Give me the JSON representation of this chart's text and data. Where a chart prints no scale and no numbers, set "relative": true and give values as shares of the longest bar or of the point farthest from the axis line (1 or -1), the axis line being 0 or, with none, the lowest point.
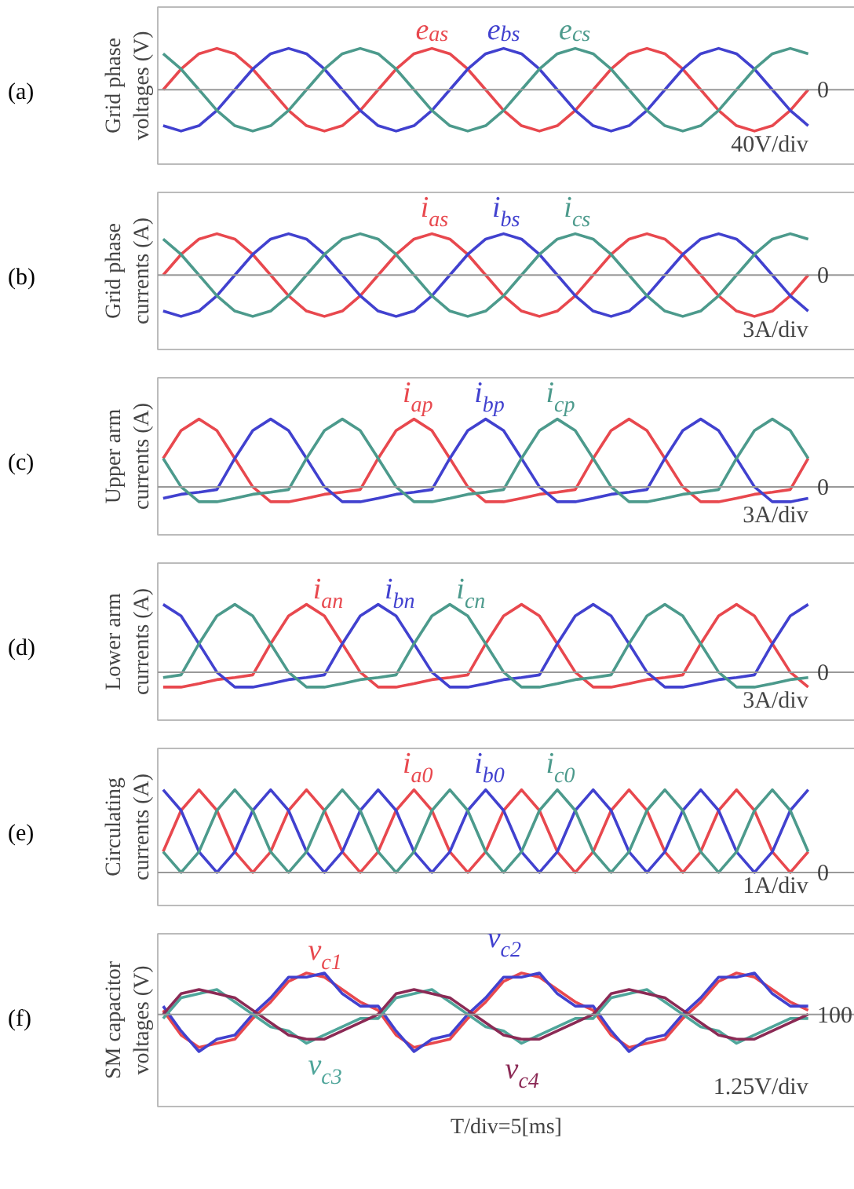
{
  "chart_data": [
    {
      "type": "line",
      "title": "(a)",
      "ylabel": "Grid phase\nvoltages (V)",
      "relative": true,
      "annotations": [
        "40V/div"
      ],
      "ref_lines": [
        {
          "axis": "y",
          "value": 0,
          "label": "0"
        }
      ],
      "categories": [
        null,
        null,
        null,
        null,
        null,
        null,
        null,
        null,
        null,
        null,
        null,
        null,
        null,
        null,
        null,
        null,
        null,
        null,
        null,
        null,
        null,
        null,
        null,
        null,
        null,
        null,
        null,
        null,
        null,
        null,
        null,
        null,
        null,
        null,
        null,
        null,
        null
      ],
      "series": [
        {
          "name": "e$_{as}$",
          "color": "#e8484e",
          "values": [
            0,
            0.5,
            0.87,
            1,
            0.87,
            0.5,
            0,
            -0.5,
            -0.87,
            -1,
            -0.87,
            -0.5,
            0,
            0.5,
            0.87,
            1,
            0.87,
            0.5,
            0,
            -0.5,
            -0.87,
            -1,
            -0.87,
            -0.5,
            0,
            0.5,
            0.87,
            1,
            0.87,
            0.5,
            0,
            -0.5,
            -0.87,
            -1,
            -0.87,
            -0.5,
            0
          ]
        },
        {
          "name": "e$_{bs}$",
          "color": "#4141cf",
          "values": [
            -0.87,
            -1,
            -0.87,
            -0.5,
            0,
            0.5,
            0.87,
            1,
            0.87,
            0.5,
            0,
            -0.5,
            -0.87,
            -1,
            -0.87,
            -0.5,
            0,
            0.5,
            0.87,
            1,
            0.87,
            0.5,
            0,
            -0.5,
            -0.87,
            -1,
            -0.87,
            -0.5,
            0,
            0.5,
            0.87,
            1,
            0.87,
            0.5,
            0,
            -0.5,
            -0.87
          ]
        },
        {
          "name": "e$_{cs}$",
          "color": "#4c9a8c",
          "values": [
            0.87,
            0.5,
            0,
            -0.5,
            -0.87,
            -1,
            -0.87,
            -0.5,
            0,
            0.5,
            0.87,
            1,
            0.87,
            0.5,
            0,
            -0.5,
            -0.87,
            -1,
            -0.87,
            -0.5,
            0,
            0.5,
            0.87,
            1,
            0.87,
            0.5,
            0,
            -0.5,
            -0.87,
            -1,
            -0.87,
            -0.5,
            0,
            0.5,
            0.87,
            1,
            0.87
          ]
        }
      ]
    },
    {
      "type": "line",
      "title": "(b)",
      "ylabel": "Grid phase\ncurrents (A)",
      "relative": true,
      "annotations": [
        "3A/div"
      ],
      "ref_lines": [
        {
          "axis": "y",
          "value": 0,
          "label": "0"
        }
      ],
      "categories": [
        null,
        null,
        null,
        null,
        null,
        null,
        null,
        null,
        null,
        null,
        null,
        null,
        null,
        null,
        null,
        null,
        null,
        null,
        null,
        null,
        null,
        null,
        null,
        null,
        null,
        null,
        null,
        null,
        null,
        null,
        null,
        null,
        null,
        null,
        null,
        null,
        null
      ],
      "series": [
        {
          "name": "i$_{as}$",
          "color": "#e8484e",
          "values": [
            0,
            0.5,
            0.87,
            1,
            0.87,
            0.5,
            0,
            -0.5,
            -0.87,
            -1,
            -0.87,
            -0.5,
            0,
            0.5,
            0.87,
            1,
            0.87,
            0.5,
            0,
            -0.5,
            -0.87,
            -1,
            -0.87,
            -0.5,
            0,
            0.5,
            0.87,
            1,
            0.87,
            0.5,
            0,
            -0.5,
            -0.87,
            -1,
            -0.87,
            -0.5,
            0
          ]
        },
        {
          "name": "i$_{bs}$",
          "color": "#4141cf",
          "values": [
            -0.87,
            -1,
            -0.87,
            -0.5,
            0,
            0.5,
            0.87,
            1,
            0.87,
            0.5,
            0,
            -0.5,
            -0.87,
            -1,
            -0.87,
            -0.5,
            0,
            0.5,
            0.87,
            1,
            0.87,
            0.5,
            0,
            -0.5,
            -0.87,
            -1,
            -0.87,
            -0.5,
            0,
            0.5,
            0.87,
            1,
            0.87,
            0.5,
            0,
            -0.5,
            -0.87
          ]
        },
        {
          "name": "i$_{cs}$",
          "color": "#4c9a8c",
          "values": [
            0.87,
            0.5,
            0,
            -0.5,
            -0.87,
            -1,
            -0.87,
            -0.5,
            0,
            0.5,
            0.87,
            1,
            0.87,
            0.5,
            0,
            -0.5,
            -0.87,
            -1,
            -0.87,
            -0.5,
            0,
            0.5,
            0.87,
            1,
            0.87,
            0.5,
            0,
            -0.5,
            -0.87,
            -1,
            -0.87,
            -0.5,
            0,
            0.5,
            0.87,
            1,
            0.87
          ]
        }
      ]
    },
    {
      "type": "line",
      "title": "(c)",
      "ylabel": "Upper arm\ncurrents (A)",
      "relative": true,
      "annotations": [
        "3A/div"
      ],
      "ref_lines": [
        {
          "axis": "y",
          "value": 0,
          "label": "0"
        }
      ],
      "categories": [
        null,
        null,
        null,
        null,
        null,
        null,
        null,
        null,
        null,
        null,
        null,
        null,
        null,
        null,
        null,
        null,
        null,
        null,
        null,
        null,
        null,
        null,
        null,
        null,
        null,
        null,
        null,
        null,
        null,
        null,
        null,
        null,
        null,
        null,
        null,
        null,
        null
      ],
      "series": [
        {
          "name": "i$_{ap}$",
          "color": "#e8484e",
          "values": [
            0.42,
            0.83,
            1,
            0.83,
            0.42,
            0,
            -0.22,
            -0.22,
            -0.17,
            -0.11,
            -0.08,
            -0.04,
            0.42,
            0.83,
            1,
            0.83,
            0.42,
            0,
            -0.22,
            -0.22,
            -0.17,
            -0.11,
            -0.08,
            -0.04,
            0.42,
            0.83,
            1,
            0.83,
            0.42,
            0,
            -0.22,
            -0.22,
            -0.17,
            -0.11,
            -0.08,
            -0.04,
            0.42
          ]
        },
        {
          "name": "i$_{bp}$",
          "color": "#4141cf",
          "values": [
            -0.17,
            -0.11,
            -0.08,
            -0.04,
            0.42,
            0.83,
            1,
            0.83,
            0.42,
            0,
            -0.22,
            -0.22,
            -0.17,
            -0.11,
            -0.08,
            -0.04,
            0.42,
            0.83,
            1,
            0.83,
            0.42,
            0,
            -0.22,
            -0.22,
            -0.17,
            -0.11,
            -0.08,
            -0.04,
            0.42,
            0.83,
            1,
            0.83,
            0.42,
            0,
            -0.22,
            -0.22,
            -0.17
          ]
        },
        {
          "name": "i$_{cp}$",
          "color": "#4c9a8c",
          "values": [
            0.42,
            0,
            -0.22,
            -0.22,
            -0.17,
            -0.11,
            -0.08,
            -0.04,
            0.42,
            0.83,
            1,
            0.83,
            0.42,
            0,
            -0.22,
            -0.22,
            -0.17,
            -0.11,
            -0.08,
            -0.04,
            0.42,
            0.83,
            1,
            0.83,
            0.42,
            0,
            -0.22,
            -0.22,
            -0.17,
            -0.11,
            -0.08,
            -0.04,
            0.42,
            0.83,
            1,
            0.83,
            0.42
          ]
        }
      ]
    },
    {
      "type": "line",
      "title": "(d)",
      "ylabel": "Lower arm\ncurrents (A)",
      "relative": true,
      "annotations": [
        "3A/div"
      ],
      "ref_lines": [
        {
          "axis": "y",
          "value": 0,
          "label": "0"
        }
      ],
      "categories": [
        null,
        null,
        null,
        null,
        null,
        null,
        null,
        null,
        null,
        null,
        null,
        null,
        null,
        null,
        null,
        null,
        null,
        null,
        null,
        null,
        null,
        null,
        null,
        null,
        null,
        null,
        null,
        null,
        null,
        null,
        null,
        null,
        null,
        null,
        null,
        null,
        null
      ],
      "series": [
        {
          "name": "i$_{an}$",
          "color": "#e8484e",
          "values": [
            -0.22,
            -0.22,
            -0.17,
            -0.11,
            -0.08,
            -0.04,
            0.42,
            0.83,
            1,
            0.83,
            0.42,
            0,
            -0.22,
            -0.22,
            -0.17,
            -0.11,
            -0.08,
            -0.04,
            0.42,
            0.83,
            1,
            0.83,
            0.42,
            0,
            -0.22,
            -0.22,
            -0.17,
            -0.11,
            -0.08,
            -0.04,
            0.42,
            0.83,
            1,
            0.83,
            0.42,
            0,
            -0.22
          ]
        },
        {
          "name": "i$_{bn}$",
          "color": "#4141cf",
          "values": [
            1,
            0.83,
            0.42,
            0,
            -0.22,
            -0.22,
            -0.17,
            -0.11,
            -0.08,
            -0.04,
            0.42,
            0.83,
            1,
            0.83,
            0.42,
            0,
            -0.22,
            -0.22,
            -0.17,
            -0.11,
            -0.08,
            -0.04,
            0.42,
            0.83,
            1,
            0.83,
            0.42,
            0,
            -0.22,
            -0.22,
            -0.17,
            -0.11,
            -0.08,
            -0.04,
            0.42,
            0.83,
            1
          ]
        },
        {
          "name": "i$_{cn}$",
          "color": "#4c9a8c",
          "values": [
            -0.08,
            -0.04,
            0.42,
            0.83,
            1,
            0.83,
            0.42,
            0,
            -0.22,
            -0.22,
            -0.17,
            -0.11,
            -0.08,
            -0.04,
            0.42,
            0.83,
            1,
            0.83,
            0.42,
            0,
            -0.22,
            -0.22,
            -0.17,
            -0.11,
            -0.08,
            -0.04,
            0.42,
            0.83,
            1,
            0.83,
            0.42,
            0,
            -0.22,
            -0.22,
            -0.17,
            -0.11,
            -0.08
          ]
        }
      ]
    },
    {
      "type": "line",
      "title": "(e)",
      "ylabel": "Circulating\ncurrents (A)",
      "relative": true,
      "annotations": [
        "1A/div"
      ],
      "ref_lines": [
        {
          "axis": "y",
          "value": 0,
          "label": "0"
        }
      ],
      "categories": [
        null,
        null,
        null,
        null,
        null,
        null,
        null,
        null,
        null,
        null,
        null,
        null,
        null,
        null,
        null,
        null,
        null,
        null,
        null,
        null,
        null,
        null,
        null,
        null,
        null,
        null,
        null,
        null,
        null,
        null,
        null,
        null,
        null,
        null,
        null,
        null,
        null
      ],
      "series": [
        {
          "name": "i$_{a0}$",
          "color": "#e8484e",
          "values": [
            0.25,
            0.75,
            1,
            0.75,
            0.25,
            0,
            0.25,
            0.75,
            1,
            0.75,
            0.25,
            0,
            0.25,
            0.75,
            1,
            0.75,
            0.25,
            0,
            0.25,
            0.75,
            1,
            0.75,
            0.25,
            0,
            0.25,
            0.75,
            1,
            0.75,
            0.25,
            0,
            0.25,
            0.75,
            1,
            0.75,
            0.25,
            0,
            0.25
          ]
        },
        {
          "name": "i$_{b0}$",
          "color": "#4141cf",
          "values": [
            1,
            0.75,
            0.25,
            0,
            0.25,
            0.75,
            1,
            0.75,
            0.25,
            0,
            0.25,
            0.75,
            1,
            0.75,
            0.25,
            0,
            0.25,
            0.75,
            1,
            0.75,
            0.25,
            0,
            0.25,
            0.75,
            1,
            0.75,
            0.25,
            0,
            0.25,
            0.75,
            1,
            0.75,
            0.25,
            0,
            0.25,
            0.75,
            1
          ]
        },
        {
          "name": "i$_{c0}$",
          "color": "#4c9a8c",
          "values": [
            0.25,
            0,
            0.25,
            0.75,
            1,
            0.75,
            0.25,
            0,
            0.25,
            0.75,
            1,
            0.75,
            0.25,
            0,
            0.25,
            0.75,
            1,
            0.75,
            0.25,
            0,
            0.25,
            0.75,
            1,
            0.75,
            0.25,
            0,
            0.25,
            0.75,
            1,
            0.75,
            0.25,
            0,
            0.25,
            0.75,
            1,
            0.75,
            0.25
          ]
        }
      ]
    },
    {
      "type": "line",
      "title": "(f)",
      "ylabel": "SM capacitor\nvoltages (V)",
      "xlabel": "T/div=5[ms]",
      "relative": true,
      "annotations": [
        "1.25V/div",
        "100"
      ],
      "ref_lines": [
        {
          "axis": "y",
          "value": 0
        }
      ],
      "categories": [
        null,
        null,
        null,
        null,
        null,
        null,
        null,
        null,
        null,
        null,
        null,
        null,
        null,
        null,
        null,
        null,
        null,
        null,
        null,
        null,
        null,
        null,
        null,
        null,
        null,
        null,
        null,
        null,
        null,
        null,
        null,
        null,
        null,
        null,
        null,
        null,
        null
      ],
      "series": [
        {
          "name": "v$_{c1}$",
          "color": "#e8484e",
          "values": [
            0.1,
            -0.5,
            -0.8,
            -0.7,
            -0.6,
            -0.1,
            0.3,
            0.8,
            1,
            0.9,
            0.6,
            0.3,
            0.1,
            -0.5,
            -0.8,
            -0.7,
            -0.6,
            -0.1,
            0.3,
            0.8,
            1,
            0.9,
            0.6,
            0.3,
            0.1,
            -0.5,
            -0.8,
            -0.7,
            -0.6,
            -0.1,
            0.3,
            0.8,
            1,
            0.9,
            0.6,
            0.3,
            0.1
          ]
        },
        {
          "name": "v$_{c2}$",
          "color": "#4141cf",
          "values": [
            0.2,
            -0.4,
            -0.9,
            -0.6,
            -0.5,
            0,
            0.4,
            0.9,
            0.9,
            1,
            0.5,
            0.2,
            0.2,
            -0.4,
            -0.9,
            -0.6,
            -0.5,
            0,
            0.4,
            0.9,
            0.9,
            1,
            0.5,
            0.2,
            0.2,
            -0.4,
            -0.9,
            -0.6,
            -0.5,
            0,
            0.4,
            0.9,
            0.9,
            1,
            0.5,
            0.2,
            0.2
          ]
        },
        {
          "name": "v$_{c3}$",
          "color": "#4fa59a",
          "values": [
            -0.1,
            0.4,
            0.5,
            0.6,
            0.3,
            0,
            -0.3,
            -0.4,
            -0.7,
            -0.5,
            -0.3,
            -0.1,
            -0.1,
            0.4,
            0.5,
            0.6,
            0.3,
            0,
            -0.3,
            -0.4,
            -0.7,
            -0.5,
            -0.3,
            -0.1,
            -0.1,
            0.4,
            0.5,
            0.6,
            0.3,
            0,
            -0.3,
            -0.4,
            -0.7,
            -0.5,
            -0.3,
            -0.1,
            -0.1
          ]
        },
        {
          "name": "v$_{c4}$",
          "color": "#8b2a55",
          "values": [
            0,
            0.5,
            0.6,
            0.5,
            0.4,
            0.1,
            -0.2,
            -0.5,
            -0.6,
            -0.6,
            -0.4,
            -0.2,
            0,
            0.5,
            0.6,
            0.5,
            0.4,
            0.1,
            -0.2,
            -0.5,
            -0.6,
            -0.6,
            -0.4,
            -0.2,
            0,
            0.5,
            0.6,
            0.5,
            0.4,
            0.1,
            -0.2,
            -0.5,
            -0.6,
            -0.6,
            -0.4,
            -0.2,
            0
          ]
        }
      ]
    }
  ]
}
